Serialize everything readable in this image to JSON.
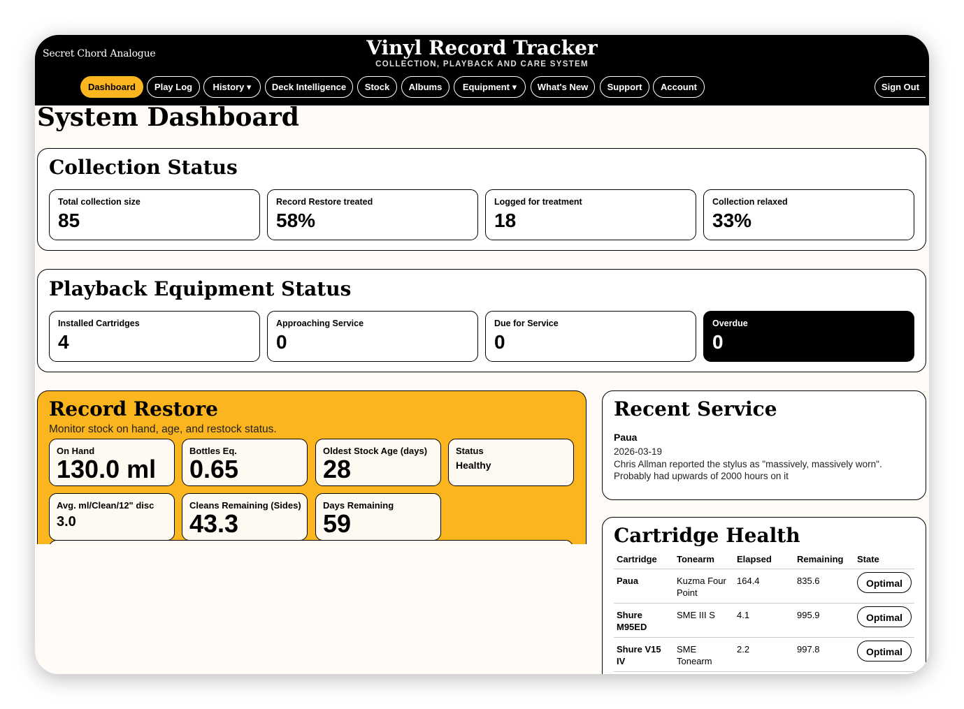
{
  "header": {
    "brand": "Secret Chord Analogue",
    "title": "Vinyl Record Tracker",
    "subtitle": "COLLECTION, PLAYBACK AND CARE SYSTEM"
  },
  "nav": {
    "items": [
      {
        "label": "Dashboard",
        "active": true
      },
      {
        "label": "Play Log"
      },
      {
        "label": "History ▾"
      },
      {
        "label": "Deck Intelligence"
      },
      {
        "label": "Stock"
      },
      {
        "label": "Albums"
      },
      {
        "label": "Equipment ▾"
      },
      {
        "label": "What's New"
      },
      {
        "label": "Support"
      },
      {
        "label": "Account"
      }
    ],
    "sign_out": "Sign Out"
  },
  "page_title": "System Dashboard",
  "collection": {
    "title": "Collection Status",
    "stats": [
      {
        "label": "Total collection size",
        "value": "85"
      },
      {
        "label": "Record Restore treated",
        "value": "58%"
      },
      {
        "label": "Logged for treatment",
        "value": "18"
      },
      {
        "label": "Collection relaxed",
        "value": "33%"
      }
    ]
  },
  "playback": {
    "title": "Playback Equipment Status",
    "stats": [
      {
        "label": "Installed Cartridges",
        "value": "4"
      },
      {
        "label": "Approaching Service",
        "value": "0"
      },
      {
        "label": "Due for Service",
        "value": "0"
      },
      {
        "label": "Overdue",
        "value": "0"
      }
    ]
  },
  "restore": {
    "title": "Record Restore",
    "description": "Monitor stock on hand, age, and restock status.",
    "cards": [
      {
        "label": "On Hand",
        "value": "130.0 ml"
      },
      {
        "label": "Bottles Eq.",
        "value": "0.65"
      },
      {
        "label": "Oldest Stock Age (days)",
        "value": "28"
      },
      {
        "label": "Status",
        "value": "Healthy"
      },
      {
        "label": "Avg. ml/Clean/12\" disc",
        "value": "3.0"
      },
      {
        "label": "Cleans Remaining (Sides)",
        "value": "43.3"
      },
      {
        "label": "Days Remaining",
        "value": "59"
      }
    ]
  },
  "recent_service": {
    "title": "Recent Service",
    "name": "Paua",
    "date": "2026-03-19",
    "note": "Chris Allman reported the stylus as \"massively, massively worn\". Probably had upwards of 2000 hours on it"
  },
  "cartridge_health": {
    "title": "Cartridge Health",
    "columns": [
      "Cartridge",
      "Tonearm",
      "Elapsed",
      "Remaining",
      "State"
    ],
    "rows": [
      {
        "cartridge": "Paua",
        "tonearm": "Kuzma Four Point",
        "elapsed": "164.4",
        "remaining": "835.6",
        "state": "Optimal"
      },
      {
        "cartridge": "Shure M95ED",
        "tonearm": "SME III S",
        "elapsed": "4.1",
        "remaining": "995.9",
        "state": "Optimal"
      },
      {
        "cartridge": "Shure V15 IV",
        "tonearm": "SME Tonearm",
        "elapsed": "2.2",
        "remaining": "997.8",
        "state": "Optimal"
      }
    ]
  },
  "colors": {
    "accent": "#fbb51e",
    "header_bg": "#000000",
    "page_bg": "#fffcf7"
  }
}
